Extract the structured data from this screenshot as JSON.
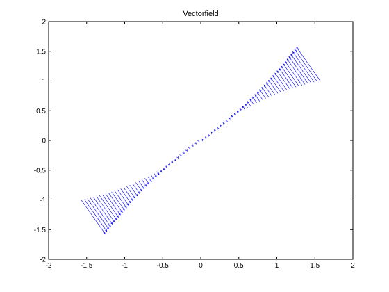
{
  "chart_data": {
    "type": "quiver",
    "title": "Vectorfield",
    "xlabel": "",
    "ylabel": "",
    "xlim": [
      -2,
      2
    ],
    "ylim": [
      -2,
      2
    ],
    "xticks": [
      -2,
      -1.5,
      -1,
      -0.5,
      0,
      0.5,
      1,
      1.5,
      2
    ],
    "yticks": [
      -2,
      -1.5,
      -1,
      -0.5,
      0,
      0.5,
      1,
      1.5,
      2
    ],
    "xtick_labels": [
      "-2",
      "-1.5",
      "-1",
      "-0.5",
      "0",
      "0.5",
      "1",
      "1.5",
      "2"
    ],
    "ytick_labels": [
      "-2",
      "-1.5",
      "-1",
      "-0.5",
      "0",
      "0.5",
      "1",
      "1.5",
      "2"
    ],
    "grid": false,
    "series": [
      {
        "kind": "quiver",
        "color": "#0000ff",
        "description_of_field": "bases on curve y = atan(x)*2/pi*1.57 from x=-1.57 to 1.57; arrow tips on curve y = x",
        "x_range": [
          -1.57,
          1.57
        ],
        "count": 80
      }
    ]
  }
}
